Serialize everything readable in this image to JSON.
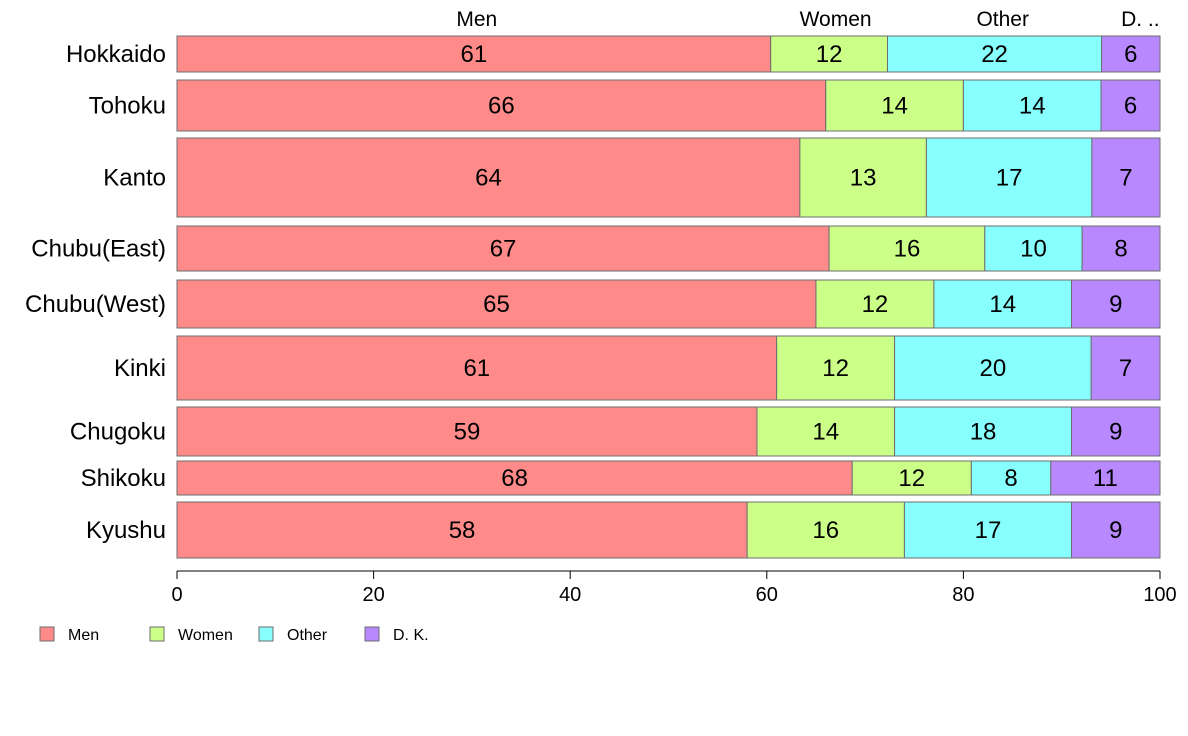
{
  "chart_data": {
    "type": "bar",
    "orientation": "horizontal",
    "stacked": true,
    "variable_width": true,
    "categories": [
      "Hokkaido",
      "Tohoku",
      "Kanto",
      "Chubu(East)",
      "Chubu(West)",
      "Kinki",
      "Chugoku",
      "Shikoku",
      "Kyushu"
    ],
    "series": [
      {
        "name": "Men",
        "color": "#ff8a8a",
        "values": [
          61,
          66,
          64,
          67,
          65,
          61,
          59,
          68,
          58
        ]
      },
      {
        "name": "Women",
        "color": "#ccff88",
        "values": [
          12,
          14,
          13,
          16,
          12,
          12,
          14,
          12,
          16
        ]
      },
      {
        "name": "Other",
        "color": "#88ffff",
        "values": [
          22,
          14,
          17,
          10,
          14,
          20,
          18,
          8,
          17
        ]
      },
      {
        "name": "D. K.",
        "color": "#b888ff",
        "values": [
          6,
          6,
          7,
          8,
          9,
          7,
          9,
          11,
          9
        ]
      }
    ],
    "top_labels": [
      "Men",
      "Women",
      "Other",
      "D. .."
    ],
    "xlim": [
      0,
      100
    ],
    "xticks": [
      "0",
      "20",
      "40",
      "60",
      "80",
      "100"
    ],
    "grid": false,
    "legend_position": "bottom-left"
  }
}
